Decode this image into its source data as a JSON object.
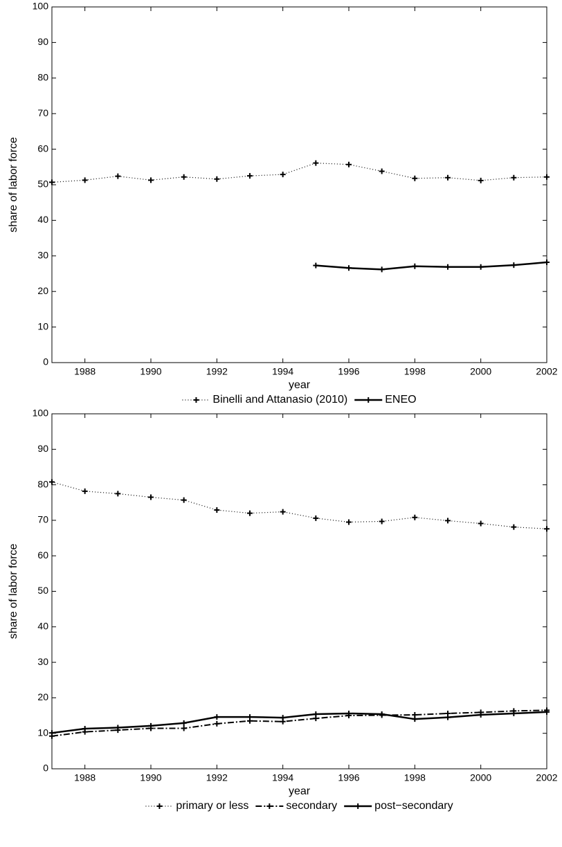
{
  "chart_data": [
    {
      "type": "line",
      "xlabel": "year",
      "ylabel": "share of labor force",
      "x": [
        1987,
        1988,
        1989,
        1990,
        1991,
        1992,
        1993,
        1994,
        1995,
        1996,
        1997,
        1998,
        1999,
        2000,
        2001,
        2002
      ],
      "xlim": [
        1987,
        2002
      ],
      "xticks": [
        1988,
        1990,
        1992,
        1994,
        1996,
        1998,
        2000,
        2002
      ],
      "ylim": [
        0,
        100
      ],
      "yticks": [
        0,
        10,
        20,
        30,
        40,
        50,
        60,
        70,
        80,
        90,
        100
      ],
      "legend": "bottom",
      "series": [
        {
          "name": "Binelli and Attanasio (2010)",
          "color": "#000000",
          "dash": "dotted",
          "values": [
            50.7,
            51.3,
            52.4,
            51.3,
            52.2,
            51.6,
            52.5,
            52.9,
            56.1,
            55.7,
            53.8,
            51.8,
            52.0,
            51.2,
            52.0,
            52.2
          ]
        },
        {
          "name": "ENEO",
          "color": "#000000",
          "dash": "solid",
          "values": [
            null,
            null,
            null,
            null,
            null,
            null,
            null,
            null,
            27.3,
            26.6,
            26.2,
            27.1,
            26.9,
            26.9,
            27.4,
            28.2
          ]
        }
      ]
    },
    {
      "type": "line",
      "xlabel": "year",
      "ylabel": "share of labor force",
      "x": [
        1987,
        1988,
        1989,
        1990,
        1991,
        1992,
        1993,
        1994,
        1995,
        1996,
        1997,
        1998,
        1999,
        2000,
        2001,
        2002
      ],
      "xlim": [
        1987,
        2002
      ],
      "xticks": [
        1988,
        1990,
        1992,
        1994,
        1996,
        1998,
        2000,
        2002
      ],
      "ylim": [
        0,
        100
      ],
      "yticks": [
        0,
        10,
        20,
        30,
        40,
        50,
        60,
        70,
        80,
        90,
        100
      ],
      "legend": "bottom",
      "series": [
        {
          "name": "primary or less",
          "color": "#000000",
          "dash": "dotted",
          "values": [
            80.8,
            78.2,
            77.5,
            76.5,
            75.7,
            72.9,
            72.0,
            72.4,
            70.6,
            69.5,
            69.7,
            70.8,
            69.9,
            69.1,
            68.1,
            67.6
          ]
        },
        {
          "name": "secondary",
          "color": "#000000",
          "dash": "dashdot",
          "values": [
            9.2,
            10.4,
            10.9,
            11.4,
            11.4,
            12.7,
            13.5,
            13.3,
            14.2,
            15.0,
            15.1,
            15.2,
            15.6,
            15.9,
            16.3,
            16.5
          ]
        },
        {
          "name": "post−secondary",
          "color": "#000000",
          "dash": "solid",
          "values": [
            10.1,
            11.3,
            11.6,
            12.1,
            12.9,
            14.6,
            14.6,
            14.4,
            15.4,
            15.6,
            15.4,
            14.0,
            14.5,
            15.2,
            15.6,
            16.0
          ]
        }
      ]
    }
  ]
}
